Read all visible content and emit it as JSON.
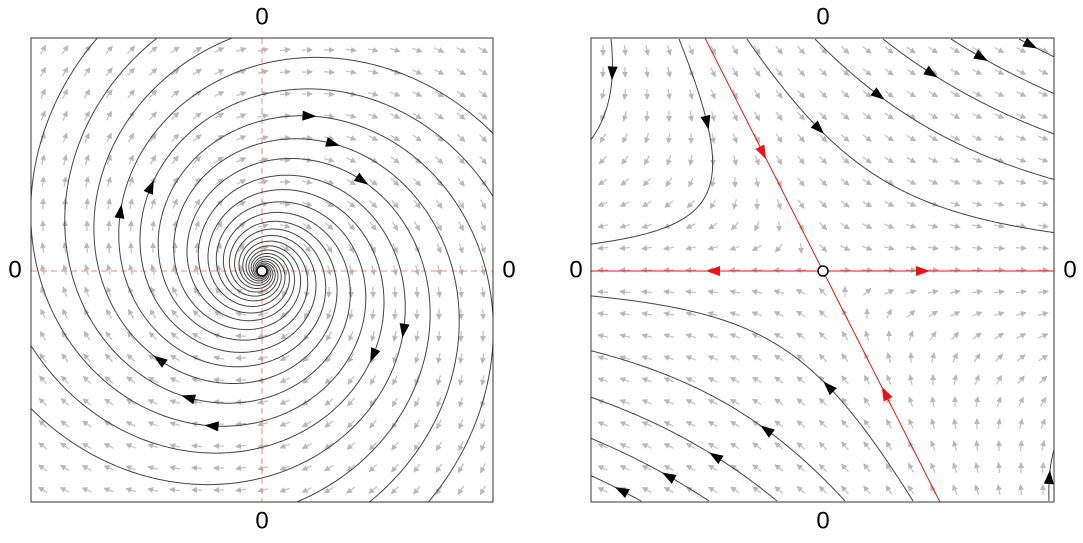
{
  "panels": [
    {
      "labels": {
        "top": "0",
        "bottom": "0",
        "left": "0",
        "right": "0"
      }
    },
    {
      "labels": {
        "top": "0",
        "bottom": "0",
        "left": "0",
        "right": "0"
      }
    }
  ]
}
